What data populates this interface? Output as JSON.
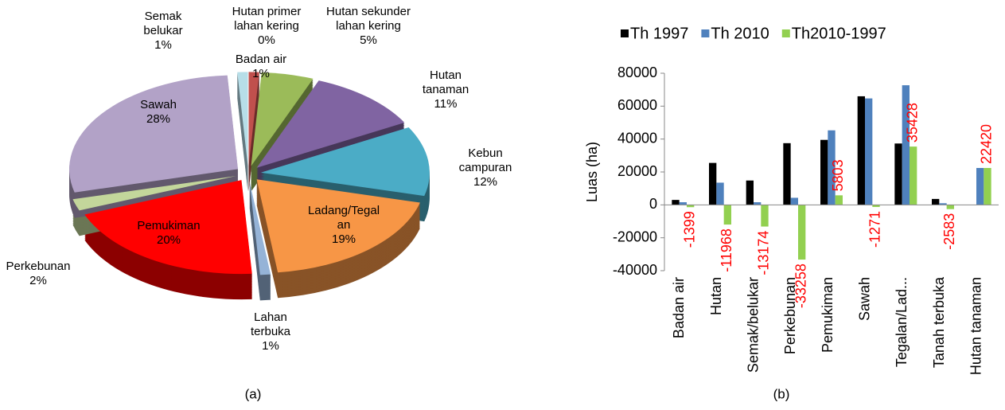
{
  "chart_data": [
    {
      "type": "pie",
      "categories": [
        "Hutan primer lahan kering",
        "Badan air",
        "Hutan sekunder lahan kering",
        "Hutan tanaman",
        "Kebun campuran",
        "Ladang/Tegalan",
        "Lahan terbuka",
        "Pemukiman",
        "Perkebunan",
        "Sawah",
        "Semak belukar"
      ],
      "values": [
        0,
        1,
        5,
        11,
        12,
        19,
        1,
        20,
        2,
        28,
        1
      ],
      "value_labels": [
        "0%",
        "1%",
        "5%",
        "11%",
        "12%",
        "19%",
        "1%",
        "20%",
        "2%",
        "28%",
        "1%"
      ],
      "colors": [
        "#4f81bd",
        "#c0504d",
        "#9bbb59",
        "#8064a2",
        "#4bacc6",
        "#f79646",
        "#95b3d7",
        "#ff0000",
        "#c3d69b",
        "#b2a2c7",
        "#b7dee8"
      ],
      "caption": "(a)"
    },
    {
      "type": "bar",
      "categories": [
        "Badan air",
        "Hutan",
        "Semak/belukar",
        "Perkebunan",
        "Pemukiman",
        "Sawah",
        "Tegalan/Lad...",
        "Tanah terbuka",
        "Hutan tanaman"
      ],
      "series": [
        {
          "name": "Th 1997",
          "color": "#000000",
          "values": [
            3000,
            25500,
            14800,
            37500,
            39500,
            66000,
            37300,
            3600,
            0
          ]
        },
        {
          "name": "Th 2010",
          "color": "#4f81bd",
          "values": [
            1600,
            13500,
            1600,
            4300,
            45300,
            64700,
            72700,
            1000,
            22420
          ]
        },
        {
          "name": "Th2010-1997",
          "color": "#92d050",
          "values": [
            -1399,
            -11968,
            -13174,
            -33258,
            5803,
            -1271,
            35428,
            -2583,
            22420
          ],
          "show_labels": true,
          "label_color": "#ff0000"
        }
      ],
      "ylabel": "Luas (ha)",
      "ylim": [
        -40000,
        80000
      ],
      "yticks": [
        -40000,
        -20000,
        0,
        20000,
        40000,
        60000,
        80000
      ],
      "legend": "top",
      "caption": "(b)"
    }
  ]
}
